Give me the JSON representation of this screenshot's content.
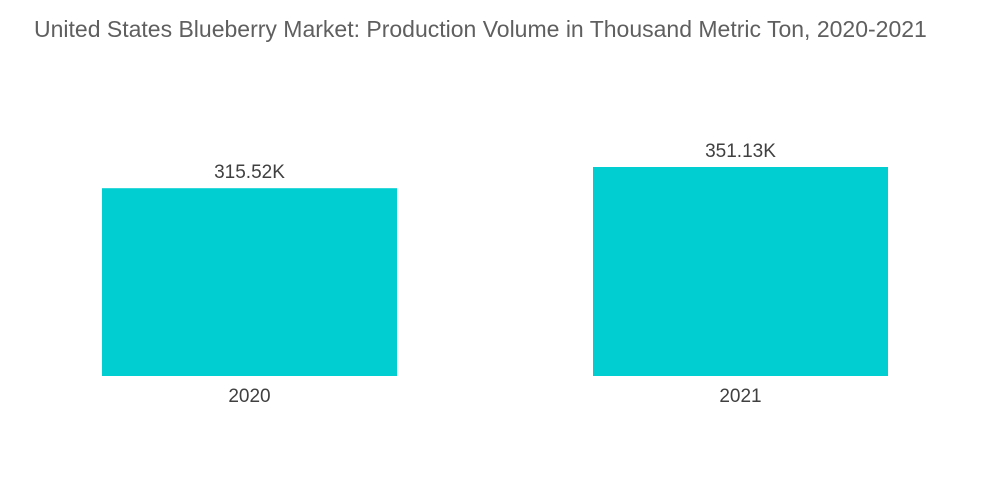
{
  "chart_data": {
    "type": "bar",
    "title": "United States Blueberry Market: Production Volume in Thousand Metric Ton, 2020-2021",
    "categories": [
      "2020",
      "2021"
    ],
    "values": [
      315.52,
      351.13
    ],
    "data_labels": [
      "315.52K",
      "351.13K"
    ],
    "xlabel": "",
    "ylabel": "",
    "ylim": [
      0,
      351.13
    ],
    "grid": false,
    "legend": "none",
    "bar_color": "#00CED1"
  }
}
